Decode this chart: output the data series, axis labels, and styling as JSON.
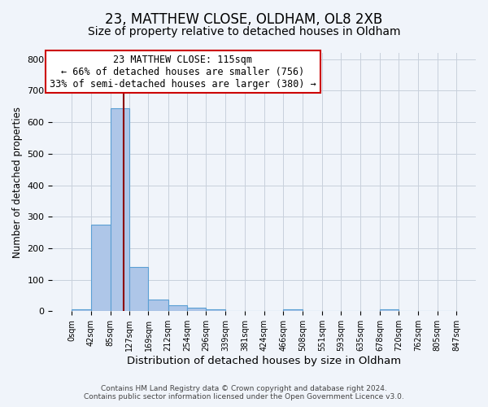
{
  "title": "23, MATTHEW CLOSE, OLDHAM, OL8 2XB",
  "subtitle": "Size of property relative to detached houses in Oldham",
  "xlabel": "Distribution of detached houses by size in Oldham",
  "ylabel": "Number of detached properties",
  "footer_lines": [
    "Contains HM Land Registry data © Crown copyright and database right 2024.",
    "Contains public sector information licensed under the Open Government Licence v3.0."
  ],
  "bin_edges": [
    0,
    42,
    85,
    127,
    169,
    212,
    254,
    296,
    339,
    381,
    424,
    466,
    508,
    551,
    593,
    635,
    678,
    720,
    762,
    805,
    847
  ],
  "bar_heights": [
    5,
    275,
    645,
    140,
    38,
    18,
    10,
    7,
    0,
    0,
    0,
    5,
    0,
    0,
    0,
    0,
    5,
    0,
    0,
    0
  ],
  "bar_color": "#aec6e8",
  "bar_edge_color": "#5a9fd4",
  "vline_x": 115,
  "vline_color": "#8b0000",
  "annotation_line1": "23 MATTHEW CLOSE: 115sqm",
  "annotation_line2": "← 66% of detached houses are smaller (756)",
  "annotation_line3": "33% of semi-detached houses are larger (380) →",
  "annotation_box_edgecolor": "#cc0000",
  "annotation_text_fontsize": 8.5,
  "ylim": [
    0,
    820
  ],
  "yticks": [
    0,
    100,
    200,
    300,
    400,
    500,
    600,
    700,
    800
  ],
  "bg_color": "#f0f4fa",
  "grid_color": "#c8d0dc",
  "title_fontsize": 12,
  "subtitle_fontsize": 10,
  "xlabel_fontsize": 9.5,
  "ylabel_fontsize": 8.5
}
